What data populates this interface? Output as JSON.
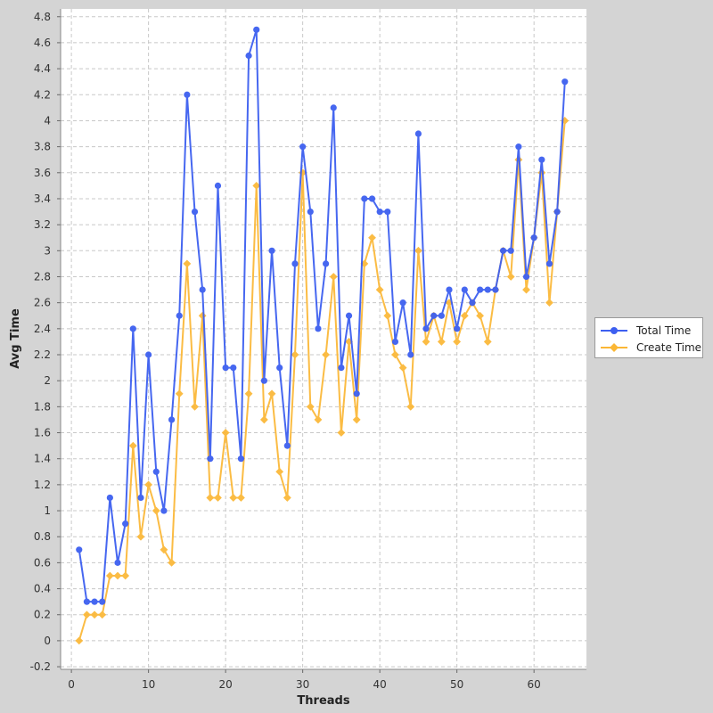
{
  "colors": {
    "total": "#3d5ff0",
    "create": "#fbb735",
    "background": "#d4d4d4",
    "plot_bg": "#ffffff",
    "grid": "#c8c8c8"
  },
  "legend": {
    "items": [
      {
        "label": "Total Time",
        "icon": "circle-marker-icon"
      },
      {
        "label": "Create Time",
        "icon": "diamond-marker-icon"
      }
    ]
  },
  "chart_data": {
    "type": "line",
    "xlabel": "Threads",
    "ylabel": "Avg Time",
    "xlim": [
      -1.4,
      66.8
    ],
    "ylim": [
      -0.22,
      4.86
    ],
    "xticks": [
      0,
      10,
      20,
      30,
      40,
      50,
      60
    ],
    "yticks": [
      -0.2,
      0,
      0.2,
      0.4,
      0.6,
      0.8,
      1,
      1.2,
      1.4,
      1.6,
      1.8,
      2,
      2.2,
      2.4,
      2.6,
      2.8,
      3,
      3.2,
      3.4,
      3.6,
      3.8,
      4,
      4.2,
      4.4,
      4.6,
      4.8
    ],
    "ytick_labels": [
      "-0.2",
      "0",
      "0.2",
      "0.4",
      "0.6",
      "0.8",
      "1",
      "1.2",
      "1.4",
      "1.6",
      "1.8",
      "2",
      "2.2",
      "2.4",
      "2.6",
      "2.8",
      "3",
      "3.2",
      "3.4",
      "3.6",
      "3.8",
      "4",
      "4.2",
      "4.4",
      "4.6",
      "4.8"
    ],
    "grid": true,
    "legend_position": "right",
    "x": [
      1,
      2,
      3,
      4,
      5,
      6,
      7,
      8,
      9,
      10,
      11,
      12,
      13,
      14,
      15,
      16,
      17,
      18,
      19,
      20,
      21,
      22,
      23,
      24,
      25,
      26,
      27,
      28,
      29,
      30,
      31,
      32,
      33,
      34,
      35,
      36,
      37,
      38,
      39,
      40,
      41,
      42,
      43,
      44,
      45,
      46,
      47,
      48,
      49,
      50,
      51,
      52,
      53,
      54,
      55,
      56,
      57,
      58,
      59,
      60,
      61,
      62,
      63,
      64
    ],
    "series": [
      {
        "name": "Total Time",
        "marker": "circle",
        "values": [
          0.7,
          0.3,
          0.3,
          0.3,
          1.1,
          0.6,
          0.9,
          2.4,
          1.1,
          2.2,
          1.3,
          1.0,
          1.7,
          2.5,
          4.2,
          3.3,
          2.7,
          1.4,
          3.5,
          2.1,
          2.1,
          1.4,
          4.5,
          4.7,
          2.0,
          3.0,
          2.1,
          1.5,
          2.9,
          3.8,
          3.3,
          2.4,
          2.9,
          4.1,
          2.1,
          2.5,
          1.9,
          3.4,
          3.4,
          3.3,
          3.3,
          2.3,
          2.6,
          2.2,
          3.9,
          2.4,
          2.5,
          2.5,
          2.7,
          2.4,
          2.7,
          2.6,
          2.7,
          2.7,
          2.7,
          3.0,
          3.0,
          3.8,
          2.8,
          3.1,
          3.7,
          2.9,
          3.3,
          4.3
        ]
      },
      {
        "name": "Create Time",
        "marker": "diamond",
        "values": [
          0.0,
          0.2,
          0.2,
          0.2,
          0.5,
          0.5,
          0.5,
          1.5,
          0.8,
          1.2,
          1.0,
          0.7,
          0.6,
          1.9,
          2.9,
          1.8,
          2.5,
          1.1,
          1.1,
          1.6,
          1.1,
          1.1,
          1.9,
          3.5,
          1.7,
          1.9,
          1.3,
          1.1,
          2.2,
          3.6,
          1.8,
          1.7,
          2.2,
          2.8,
          1.6,
          2.3,
          1.7,
          2.9,
          3.1,
          2.7,
          2.5,
          2.2,
          2.1,
          1.8,
          3.0,
          2.3,
          2.5,
          2.3,
          2.6,
          2.3,
          2.5,
          2.6,
          2.5,
          2.3,
          2.7,
          3.0,
          2.8,
          3.7,
          2.7,
          3.1,
          3.6,
          2.6,
          3.3,
          4.0
        ]
      }
    ]
  }
}
